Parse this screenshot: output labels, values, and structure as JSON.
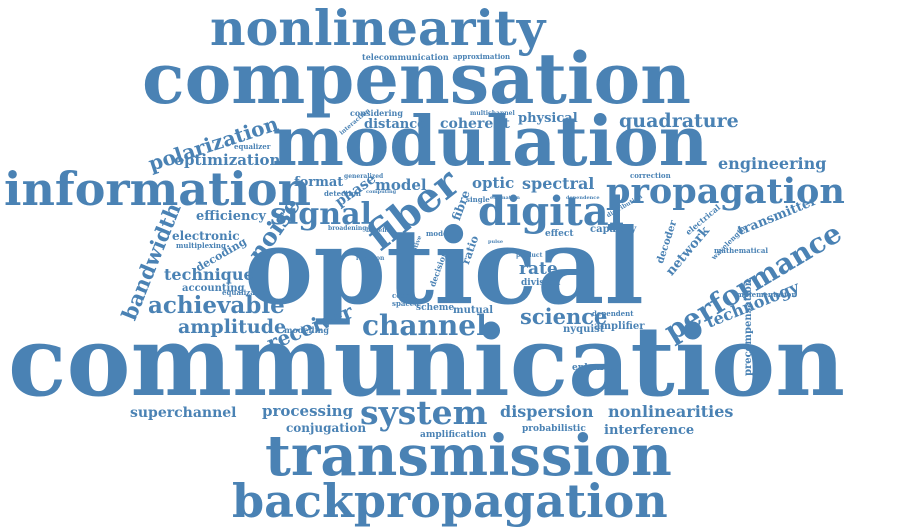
{
  "word_cloud": {
    "color": "#4a82b4",
    "words": [
      "nonlinearity",
      "compensation",
      "modulation",
      "information",
      "propagation",
      "signal",
      "fiber",
      "digital",
      "optical",
      "communication",
      "transmission",
      "backpropagation",
      "system",
      "channel",
      "performance",
      "polarization",
      "optimization",
      "quadrature",
      "engineering",
      "bandwidth",
      "achievable",
      "amplitude",
      "receiver",
      "technique",
      "noise",
      "science",
      "rate",
      "spectral",
      "coherent",
      "physical",
      "distance",
      "format",
      "phase",
      "model",
      "optic",
      "efficiency",
      "electronic",
      "decoding",
      "accounting",
      "equalization",
      "multiplexing",
      "modelling",
      "superchannel",
      "processing",
      "conjugation",
      "amplification",
      "probabilistic",
      "interference",
      "nonlinearities",
      "dispersion",
      "enhanced",
      "amplifier",
      "nyquist",
      "technology",
      "network",
      "transmitter",
      "decoder",
      "capacity",
      "effect",
      "division",
      "mutual",
      "scheme",
      "coded",
      "precompensation",
      "telecommunication",
      "approximation",
      "considering",
      "equalizer",
      "wavelength",
      "electrical",
      "mathematical",
      "implementation",
      "correction",
      "generalized",
      "detection",
      "multichannel",
      "dependent",
      "spaced",
      "fibre",
      "ratio",
      "decision",
      "single",
      "broadening",
      "mode",
      "benefit",
      "function",
      "product",
      "interaction",
      "dependence",
      "computing",
      "distribution",
      "estimation",
      "pulse",
      "adaptive"
    ]
  }
}
